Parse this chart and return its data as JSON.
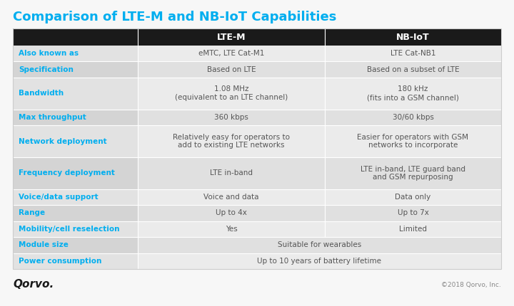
{
  "title": "Comparison of LTE-M and NB-IoT Capabilities",
  "title_color": "#00AEEF",
  "title_fontsize": 13,
  "header_bg": "#1a1a1a",
  "header_text_color": "#ffffff",
  "header_labels": [
    "",
    "LTE-M",
    "NB-IoT"
  ],
  "col1_label_color": "#00AEEF",
  "rows": [
    {
      "label": "Also known as",
      "col2": "eMTC, LTE Cat-M1",
      "col3": "LTE Cat-NB1",
      "span": false
    },
    {
      "label": "Specification",
      "col2": "Based on LTE",
      "col3": "Based on a subset of LTE",
      "span": false
    },
    {
      "label": "Bandwidth",
      "col2": "1.08 MHz\n(equivalent to an LTE channel)",
      "col3": "180 kHz\n(fits into a GSM channel)",
      "span": false
    },
    {
      "label": "Max throughput",
      "col2": "360 kbps",
      "col3": "30/60 kbps",
      "span": false
    },
    {
      "label": "Network deployment",
      "col2": "Relatively easy for operators to\nadd to existing LTE networks",
      "col3": "Easier for operators with GSM\nnetworks to incorporate",
      "span": false
    },
    {
      "label": "Frequency deployment",
      "col2": "LTE in-band",
      "col3": "LTE in-band, LTE guard band\nand GSM repurposing",
      "span": false
    },
    {
      "label": "Voice/data support",
      "col2": "Voice and data",
      "col3": "Data only",
      "span": false
    },
    {
      "label": "Range",
      "col2": "Up to 4x",
      "col3": "Up to 7x",
      "span": false
    },
    {
      "label": "Mobility/cell reselection",
      "col2": "Yes",
      "col3": "Limited",
      "span": false
    },
    {
      "label": "Module size",
      "col2": "Suitable for wearables",
      "col3": "",
      "span": true
    },
    {
      "label": "Power consumption",
      "col2": "Up to 10 years of battery lifetime",
      "col3": "",
      "span": true
    }
  ],
  "odd_label_bg": "#e2e2e2",
  "even_label_bg": "#d4d4d4",
  "odd_data_bg": "#ebebeb",
  "even_data_bg": "#e0e0e0",
  "divider_color": "#ffffff",
  "text_color": "#555555",
  "footer_logo": "Qorvo.",
  "footer_copyright": "©2018 Qorvo, Inc.",
  "bg_color": "#f7f7f7"
}
